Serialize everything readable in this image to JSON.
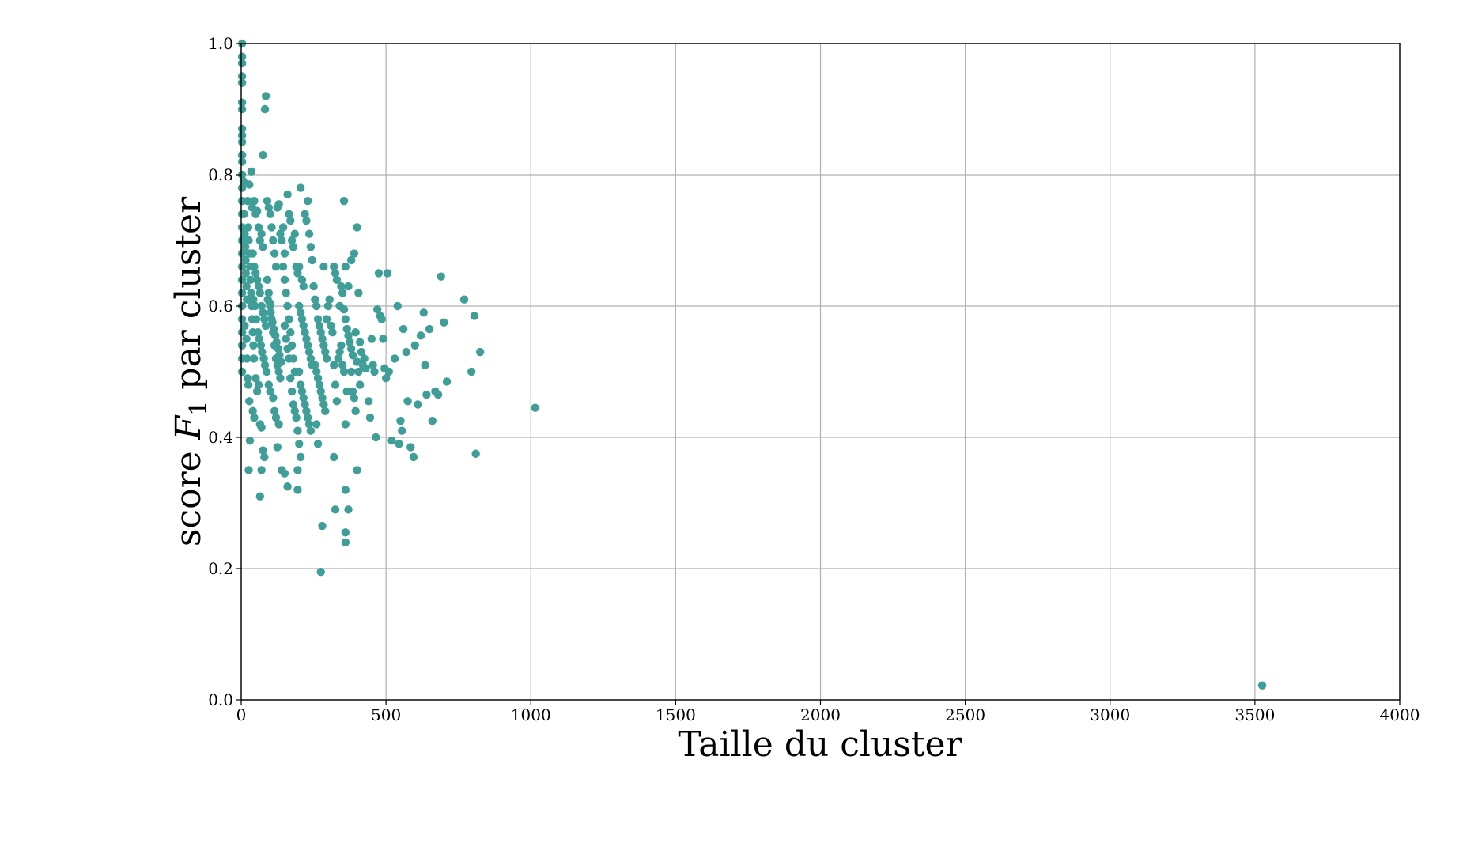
{
  "chart_data": {
    "type": "scatter",
    "xlabel": "Taille du cluster",
    "ylabel_prefix": "score ",
    "ylabel_var": "F",
    "ylabel_sub": "1",
    "ylabel_suffix": " par cluster",
    "xlim": [
      0,
      4000
    ],
    "ylim": [
      0.0,
      1.0
    ],
    "x_ticks": [
      0,
      500,
      1000,
      1500,
      2000,
      2500,
      3000,
      3500,
      4000
    ],
    "x_tick_labels": [
      "0",
      "500",
      "1000",
      "1500",
      "2000",
      "2500",
      "3000",
      "3500",
      "4000"
    ],
    "y_ticks": [
      0.0,
      0.2,
      0.4,
      0.6,
      0.8,
      1.0
    ],
    "y_tick_labels": [
      "0.0",
      "0.2",
      "0.4",
      "0.6",
      "0.8",
      "1.0"
    ],
    "grid": true,
    "marker_color": "#3f9f98",
    "points": [
      [
        3,
        1.0
      ],
      [
        3,
        0.98
      ],
      [
        3,
        0.97
      ],
      [
        3,
        0.95
      ],
      [
        3,
        0.94
      ],
      [
        3,
        0.91
      ],
      [
        3,
        0.9
      ],
      [
        3,
        0.87
      ],
      [
        3,
        0.86
      ],
      [
        3,
        0.85
      ],
      [
        3,
        0.83
      ],
      [
        3,
        0.82
      ],
      [
        3,
        0.8
      ],
      [
        3,
        0.78
      ],
      [
        3,
        0.76
      ],
      [
        3,
        0.74
      ],
      [
        3,
        0.72
      ],
      [
        3,
        0.7
      ],
      [
        3,
        0.68
      ],
      [
        3,
        0.66
      ],
      [
        3,
        0.64
      ],
      [
        3,
        0.62
      ],
      [
        3,
        0.6
      ],
      [
        3,
        0.58
      ],
      [
        3,
        0.56
      ],
      [
        3,
        0.54
      ],
      [
        3,
        0.52
      ],
      [
        3,
        0.5
      ],
      [
        8,
        0.79
      ],
      [
        10,
        0.74
      ],
      [
        12,
        0.71
      ],
      [
        14,
        0.69
      ],
      [
        15,
        0.67
      ],
      [
        16,
        0.65
      ],
      [
        18,
        0.63
      ],
      [
        20,
        0.61
      ],
      [
        22,
        0.76
      ],
      [
        24,
        0.72
      ],
      [
        26,
        0.7
      ],
      [
        28,
        0.68
      ],
      [
        30,
        0.66
      ],
      [
        32,
        0.64
      ],
      [
        34,
        0.62
      ],
      [
        36,
        0.6
      ],
      [
        38,
        0.58
      ],
      [
        40,
        0.56
      ],
      [
        42,
        0.54
      ],
      [
        44,
        0.52
      ],
      [
        12,
        0.57
      ],
      [
        18,
        0.55
      ],
      [
        20,
        0.52
      ],
      [
        22,
        0.49
      ],
      [
        25,
        0.48
      ],
      [
        28,
        0.455
      ],
      [
        30,
        0.395
      ],
      [
        26,
        0.35
      ],
      [
        35,
        0.805
      ],
      [
        28,
        0.785
      ],
      [
        38,
        0.75
      ],
      [
        45,
        0.76
      ],
      [
        50,
        0.74
      ],
      [
        55,
        0.745
      ],
      [
        60,
        0.72
      ],
      [
        65,
        0.7
      ],
      [
        70,
        0.71
      ],
      [
        75,
        0.69
      ],
      [
        40,
        0.68
      ],
      [
        45,
        0.66
      ],
      [
        50,
        0.65
      ],
      [
        55,
        0.64
      ],
      [
        60,
        0.63
      ],
      [
        65,
        0.62
      ],
      [
        70,
        0.6
      ],
      [
        75,
        0.59
      ],
      [
        80,
        0.58
      ],
      [
        85,
        0.57
      ],
      [
        42,
        0.61
      ],
      [
        48,
        0.6
      ],
      [
        52,
        0.58
      ],
      [
        58,
        0.56
      ],
      [
        62,
        0.55
      ],
      [
        68,
        0.54
      ],
      [
        72,
        0.53
      ],
      [
        78,
        0.52
      ],
      [
        82,
        0.51
      ],
      [
        88,
        0.5
      ],
      [
        40,
        0.44
      ],
      [
        45,
        0.43
      ],
      [
        50,
        0.49
      ],
      [
        55,
        0.47
      ],
      [
        60,
        0.48
      ],
      [
        65,
        0.42
      ],
      [
        70,
        0.415
      ],
      [
        75,
        0.38
      ],
      [
        80,
        0.37
      ],
      [
        65,
        0.31
      ],
      [
        70,
        0.35
      ],
      [
        75,
        0.83
      ],
      [
        85,
        0.92
      ],
      [
        82,
        0.9
      ],
      [
        90,
        0.76
      ],
      [
        95,
        0.75
      ],
      [
        100,
        0.74
      ],
      [
        105,
        0.72
      ],
      [
        110,
        0.7
      ],
      [
        115,
        0.68
      ],
      [
        120,
        0.66
      ],
      [
        125,
        0.75
      ],
      [
        130,
        0.755
      ],
      [
        135,
        0.71
      ],
      [
        90,
        0.64
      ],
      [
        95,
        0.62
      ],
      [
        100,
        0.6
      ],
      [
        105,
        0.58
      ],
      [
        110,
        0.56
      ],
      [
        115,
        0.54
      ],
      [
        120,
        0.52
      ],
      [
        125,
        0.51
      ],
      [
        130,
        0.5
      ],
      [
        135,
        0.49
      ],
      [
        92,
        0.61
      ],
      [
        98,
        0.605
      ],
      [
        102,
        0.59
      ],
      [
        108,
        0.575
      ],
      [
        112,
        0.565
      ],
      [
        118,
        0.555
      ],
      [
        122,
        0.545
      ],
      [
        128,
        0.535
      ],
      [
        132,
        0.525
      ],
      [
        138,
        0.515
      ],
      [
        95,
        0.48
      ],
      [
        100,
        0.47
      ],
      [
        110,
        0.46
      ],
      [
        115,
        0.44
      ],
      [
        120,
        0.43
      ],
      [
        125,
        0.385
      ],
      [
        130,
        0.42
      ],
      [
        140,
        0.35
      ],
      [
        150,
        0.345
      ],
      [
        160,
        0.325
      ],
      [
        140,
        0.7
      ],
      [
        145,
        0.66
      ],
      [
        150,
        0.64
      ],
      [
        155,
        0.62
      ],
      [
        160,
        0.6
      ],
      [
        165,
        0.58
      ],
      [
        170,
        0.56
      ],
      [
        175,
        0.54
      ],
      [
        180,
        0.52
      ],
      [
        185,
        0.5
      ],
      [
        145,
        0.72
      ],
      [
        150,
        0.68
      ],
      [
        160,
        0.77
      ],
      [
        165,
        0.74
      ],
      [
        170,
        0.73
      ],
      [
        175,
        0.7
      ],
      [
        180,
        0.69
      ],
      [
        185,
        0.71
      ],
      [
        190,
        0.66
      ],
      [
        195,
        0.65
      ],
      [
        150,
        0.57
      ],
      [
        155,
        0.55
      ],
      [
        160,
        0.535
      ],
      [
        165,
        0.52
      ],
      [
        170,
        0.49
      ],
      [
        175,
        0.47
      ],
      [
        180,
        0.45
      ],
      [
        185,
        0.44
      ],
      [
        190,
        0.43
      ],
      [
        195,
        0.41
      ],
      [
        200,
        0.66
      ],
      [
        205,
        0.78
      ],
      [
        210,
        0.64
      ],
      [
        215,
        0.63
      ],
      [
        220,
        0.74
      ],
      [
        225,
        0.73
      ],
      [
        230,
        0.76
      ],
      [
        235,
        0.71
      ],
      [
        240,
        0.69
      ],
      [
        245,
        0.67
      ],
      [
        200,
        0.6
      ],
      [
        205,
        0.59
      ],
      [
        210,
        0.58
      ],
      [
        215,
        0.57
      ],
      [
        220,
        0.56
      ],
      [
        225,
        0.55
      ],
      [
        230,
        0.54
      ],
      [
        235,
        0.53
      ],
      [
        240,
        0.52
      ],
      [
        245,
        0.51
      ],
      [
        200,
        0.5
      ],
      [
        205,
        0.48
      ],
      [
        210,
        0.47
      ],
      [
        215,
        0.46
      ],
      [
        220,
        0.45
      ],
      [
        225,
        0.44
      ],
      [
        230,
        0.43
      ],
      [
        235,
        0.42
      ],
      [
        240,
        0.41
      ],
      [
        200,
        0.39
      ],
      [
        205,
        0.37
      ],
      [
        195,
        0.35
      ],
      [
        195,
        0.32
      ],
      [
        250,
        0.63
      ],
      [
        255,
        0.61
      ],
      [
        260,
        0.6
      ],
      [
        265,
        0.58
      ],
      [
        270,
        0.57
      ],
      [
        275,
        0.56
      ],
      [
        280,
        0.55
      ],
      [
        285,
        0.54
      ],
      [
        290,
        0.53
      ],
      [
        295,
        0.52
      ],
      [
        255,
        0.51
      ],
      [
        260,
        0.5
      ],
      [
        265,
        0.49
      ],
      [
        270,
        0.48
      ],
      [
        275,
        0.47
      ],
      [
        280,
        0.46
      ],
      [
        285,
        0.45
      ],
      [
        290,
        0.44
      ],
      [
        260,
        0.42
      ],
      [
        265,
        0.39
      ],
      [
        280,
        0.265
      ],
      [
        285,
        0.66
      ],
      [
        295,
        0.58
      ],
      [
        300,
        0.6
      ],
      [
        305,
        0.61
      ],
      [
        310,
        0.57
      ],
      [
        315,
        0.56
      ],
      [
        320,
        0.66
      ],
      [
        325,
        0.65
      ],
      [
        330,
        0.64
      ],
      [
        320,
        0.51
      ],
      [
        325,
        0.48
      ],
      [
        330,
        0.455
      ],
      [
        335,
        0.52
      ],
      [
        340,
        0.53
      ],
      [
        345,
        0.54
      ],
      [
        350,
        0.51
      ],
      [
        355,
        0.5
      ],
      [
        360,
        0.42
      ],
      [
        365,
        0.47
      ],
      [
        320,
        0.37
      ],
      [
        325,
        0.29
      ],
      [
        275,
        0.195
      ],
      [
        340,
        0.6
      ],
      [
        345,
        0.63
      ],
      [
        350,
        0.62
      ],
      [
        355,
        0.595
      ],
      [
        360,
        0.58
      ],
      [
        365,
        0.565
      ],
      [
        370,
        0.555
      ],
      [
        375,
        0.545
      ],
      [
        380,
        0.535
      ],
      [
        385,
        0.525
      ],
      [
        355,
        0.76
      ],
      [
        360,
        0.66
      ],
      [
        370,
        0.63
      ],
      [
        380,
        0.67
      ],
      [
        390,
        0.68
      ],
      [
        400,
        0.72
      ],
      [
        405,
        0.62
      ],
      [
        395,
        0.56
      ],
      [
        410,
        0.545
      ],
      [
        415,
        0.53
      ],
      [
        380,
        0.5
      ],
      [
        385,
        0.47
      ],
      [
        390,
        0.46
      ],
      [
        395,
        0.44
      ],
      [
        400,
        0.515
      ],
      [
        405,
        0.5
      ],
      [
        410,
        0.48
      ],
      [
        400,
        0.35
      ],
      [
        360,
        0.32
      ],
      [
        370,
        0.29
      ],
      [
        360,
        0.255
      ],
      [
        360,
        0.24
      ],
      [
        420,
        0.51
      ],
      [
        425,
        0.52
      ],
      [
        430,
        0.505
      ],
      [
        440,
        0.455
      ],
      [
        445,
        0.43
      ],
      [
        450,
        0.55
      ],
      [
        455,
        0.51
      ],
      [
        460,
        0.5
      ],
      [
        465,
        0.4
      ],
      [
        470,
        0.595
      ],
      [
        475,
        0.65
      ],
      [
        480,
        0.585
      ],
      [
        485,
        0.58
      ],
      [
        490,
        0.55
      ],
      [
        495,
        0.505
      ],
      [
        500,
        0.49
      ],
      [
        505,
        0.65
      ],
      [
        510,
        0.5
      ],
      [
        520,
        0.395
      ],
      [
        530,
        0.52
      ],
      [
        540,
        0.6
      ],
      [
        545,
        0.39
      ],
      [
        550,
        0.425
      ],
      [
        555,
        0.41
      ],
      [
        560,
        0.565
      ],
      [
        570,
        0.53
      ],
      [
        575,
        0.455
      ],
      [
        585,
        0.385
      ],
      [
        595,
        0.37
      ],
      [
        600,
        0.54
      ],
      [
        610,
        0.45
      ],
      [
        620,
        0.555
      ],
      [
        630,
        0.59
      ],
      [
        635,
        0.51
      ],
      [
        640,
        0.465
      ],
      [
        650,
        0.565
      ],
      [
        660,
        0.425
      ],
      [
        670,
        0.47
      ],
      [
        680,
        0.465
      ],
      [
        690,
        0.645
      ],
      [
        700,
        0.575
      ],
      [
        710,
        0.485
      ],
      [
        770,
        0.61
      ],
      [
        795,
        0.5
      ],
      [
        805,
        0.585
      ],
      [
        810,
        0.375
      ],
      [
        825,
        0.53
      ],
      [
        1015,
        0.445
      ],
      [
        3525,
        0.022
      ]
    ]
  }
}
